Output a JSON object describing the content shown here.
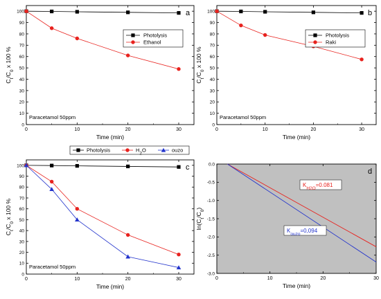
{
  "chart_data": [
    {
      "panel": "a",
      "type": "line",
      "xlabel": "Time (min)",
      "ylabel": "C_t/C_0 x 100 %",
      "xlim": [
        0,
        33
      ],
      "ylim": [
        0,
        105
      ],
      "xticks": [
        0,
        10,
        20,
        30
      ],
      "yticks": [
        0,
        10,
        20,
        30,
        40,
        50,
        60,
        70,
        80,
        90,
        100
      ],
      "annotation": "Paracetamol 50ppm",
      "legend_position": "top-right",
      "series": [
        {
          "name": "Photolysis",
          "color": "#000000",
          "marker": "square",
          "x": [
            0,
            5,
            10,
            20,
            30
          ],
          "y": [
            100,
            99.8,
            99.5,
            99,
            98.5
          ]
        },
        {
          "name": "Ethanol",
          "color": "#e8221e",
          "marker": "circle",
          "x": [
            0,
            5,
            10,
            20,
            30
          ],
          "y": [
            100,
            85,
            76,
            61,
            49
          ]
        }
      ]
    },
    {
      "panel": "b",
      "type": "line",
      "xlabel": "Time (min)",
      "ylabel": "C_t/C_0 x 100 %",
      "xlim": [
        0,
        33
      ],
      "ylim": [
        0,
        105
      ],
      "xticks": [
        0,
        10,
        20,
        30
      ],
      "yticks": [
        0,
        10,
        20,
        30,
        40,
        50,
        60,
        70,
        80,
        90,
        100
      ],
      "annotation": "Paracetamol 50ppm",
      "legend_position": "top-right",
      "series": [
        {
          "name": "Photolysis",
          "color": "#000000",
          "marker": "square",
          "x": [
            0,
            5,
            10,
            20,
            30
          ],
          "y": [
            100,
            99.8,
            99.5,
            99,
            98.5
          ]
        },
        {
          "name": "Raki",
          "color": "#e8221e",
          "marker": "circle",
          "x": [
            0,
            5,
            10,
            20,
            30
          ],
          "y": [
            100,
            87.5,
            79,
            69,
            57.5
          ]
        }
      ]
    },
    {
      "panel": "c",
      "type": "line",
      "xlabel": "Time (min)",
      "ylabel": "C_t/C_0 x 100 %",
      "xlim": [
        0,
        33
      ],
      "ylim": [
        0,
        105
      ],
      "xticks": [
        0,
        10,
        20,
        30
      ],
      "yticks": [
        0,
        10,
        20,
        30,
        40,
        50,
        60,
        70,
        80,
        90,
        100
      ],
      "annotation": "Paracetamol 50ppm",
      "legend_position": "top (outside)",
      "series": [
        {
          "name": "Photolysis",
          "color": "#000000",
          "marker": "square",
          "x": [
            0,
            5,
            10,
            20,
            30
          ],
          "y": [
            100,
            99.8,
            99.5,
            99,
            98.5
          ]
        },
        {
          "name": "H2O",
          "color": "#e8221e",
          "marker": "circle",
          "x": [
            0,
            5,
            10,
            20,
            30
          ],
          "y": [
            100,
            85,
            60,
            36,
            18
          ]
        },
        {
          "name": "ouzo",
          "color": "#2233cc",
          "marker": "triangle",
          "x": [
            0,
            5,
            10,
            20,
            30
          ],
          "y": [
            100,
            78,
            50,
            16,
            6
          ]
        }
      ]
    },
    {
      "panel": "d",
      "type": "line",
      "xlabel": "Time (min)",
      "ylabel": "ln(C_t/C_0)",
      "xlim": [
        0,
        30
      ],
      "ylim": [
        -3.0,
        0.0
      ],
      "xticks": [
        0,
        10,
        20,
        30
      ],
      "yticks": [
        0.0,
        -0.5,
        -1.0,
        -1.5,
        -2.0,
        -2.5,
        -3.0
      ],
      "background": "#c0c0c0",
      "series": [
        {
          "name": "H2O",
          "color": "#e8221e",
          "x": [
            2,
            30
          ],
          "y": [
            0.0,
            -2.27
          ]
        },
        {
          "name": "ouzo",
          "color": "#2233cc",
          "x": [
            2,
            30
          ],
          "y": [
            0.0,
            -2.69
          ]
        }
      ],
      "annotations": [
        {
          "label": "K",
          "sub": "H2O",
          "value": "=0.081",
          "color": "#e8221e"
        },
        {
          "label": "K",
          "sub": "ouzo",
          "value": "=0,094",
          "color": "#2233cc"
        }
      ]
    }
  ]
}
